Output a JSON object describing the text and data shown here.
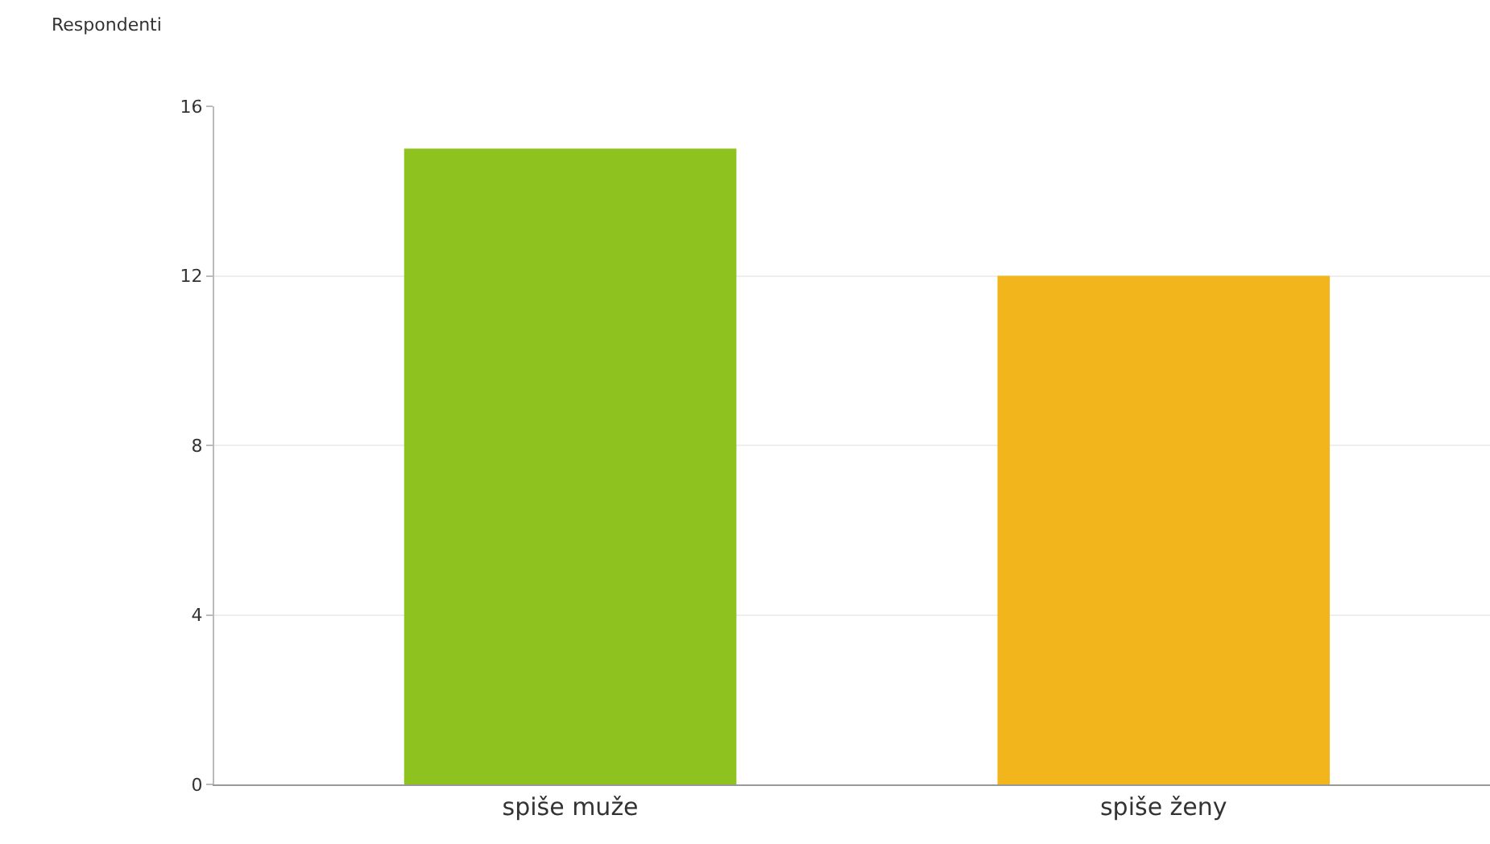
{
  "chart_data": {
    "type": "bar",
    "ylabel": "Respondenti",
    "categories": [
      "spiše muže",
      "spiše ženy"
    ],
    "values": [
      15,
      12
    ],
    "colors": [
      "#8dc21f",
      "#f2b51c"
    ],
    "ylim": [
      0,
      16
    ],
    "yticks": [
      0,
      4,
      8,
      12,
      16
    ],
    "grid": "y"
  }
}
